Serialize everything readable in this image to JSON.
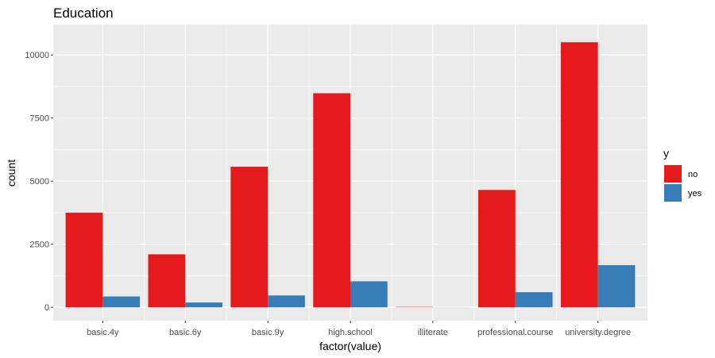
{
  "chart_data": {
    "type": "bar",
    "title": "Education",
    "xlabel": "factor(value)",
    "ylabel": "count",
    "categories": [
      "basic.4y",
      "basic.6y",
      "basic.9y",
      "high.school",
      "illiterate",
      "professional.course",
      "university.degree"
    ],
    "series": [
      {
        "name": "no",
        "color": "#E41A1C",
        "values": [
          3750,
          2100,
          5570,
          8480,
          14,
          4650,
          10500
        ]
      },
      {
        "name": "yes",
        "color": "#377EB8",
        "values": [
          430,
          190,
          470,
          1030,
          4,
          600,
          1670
        ]
      }
    ],
    "ylim": [
      -530,
      11200
    ],
    "yticks": [
      0,
      2500,
      5000,
      7500,
      10000
    ],
    "ytick_labels": [
      "0",
      "2500",
      "5000",
      "7500",
      "10000"
    ],
    "legend": {
      "title": "y",
      "position": "right"
    },
    "grid": true,
    "panel_background": "#EBEBEB",
    "grid_color": "#FFFFFF"
  }
}
